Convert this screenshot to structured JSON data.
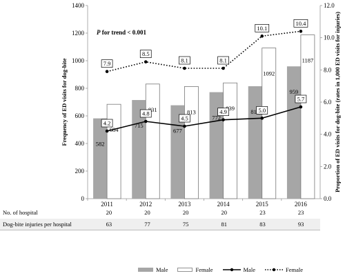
{
  "chart_data": {
    "type": "bar+line",
    "categories": [
      "2011",
      "2012",
      "2013",
      "2014",
      "2015",
      "2016"
    ],
    "bars": [
      {
        "name": "Male",
        "values": [
          582,
          715,
          677,
          772,
          815,
          959
        ],
        "color": "#a6a6a6"
      },
      {
        "name": "Female",
        "values": [
          684,
          831,
          813,
          839,
          1092,
          1187
        ],
        "color": "#ffffff"
      }
    ],
    "lines": [
      {
        "name": "Male",
        "values": [
          4.2,
          4.8,
          4.5,
          4.9,
          5.0,
          5.7
        ],
        "style": "solid",
        "labels": [
          "4.2",
          "4.8",
          "4.5",
          "4.9",
          "5.0",
          "5.7"
        ]
      },
      {
        "name": "Female",
        "values": [
          7.9,
          8.5,
          8.1,
          8.1,
          10.1,
          10.4
        ],
        "style": "dotted",
        "labels": [
          "7.9",
          "8.5",
          "8.1",
          "8.1",
          "10.1",
          "10.4"
        ]
      }
    ],
    "ylabel_left": "Frequency of ED visits for dog-bite",
    "ylabel_right": "Proportion of ED visits for dog-bite (rates in 1,000 ED visits for injuries)",
    "ylim_left": [
      0,
      1400
    ],
    "ylim_right": [
      0,
      12
    ],
    "yticks_left": [
      "0",
      "200",
      "400",
      "600",
      "800",
      "1000",
      "1200",
      "1400"
    ],
    "yticks_right": [
      "0.0",
      "2.0",
      "4.0",
      "6.0",
      "8.0",
      "10.0",
      "12.0"
    ],
    "annotation_p": "P",
    "annotation_rest": " for trend < 0.001",
    "grid": false,
    "legend_position": "bottom"
  },
  "table": {
    "rows": [
      {
        "label": "No. of hospital",
        "values": [
          "20",
          "20",
          "20",
          "20",
          "23",
          "23"
        ]
      },
      {
        "label": "Dog-bite injuries per hospital",
        "values": [
          "63",
          "77",
          "75",
          "81",
          "83",
          "93"
        ]
      }
    ]
  },
  "legend": {
    "items": [
      {
        "label": "Male",
        "kind": "bar-male"
      },
      {
        "label": "Female",
        "kind": "bar-female"
      },
      {
        "label": "Male",
        "kind": "line-male"
      },
      {
        "label": "Female",
        "kind": "line-female"
      }
    ]
  }
}
